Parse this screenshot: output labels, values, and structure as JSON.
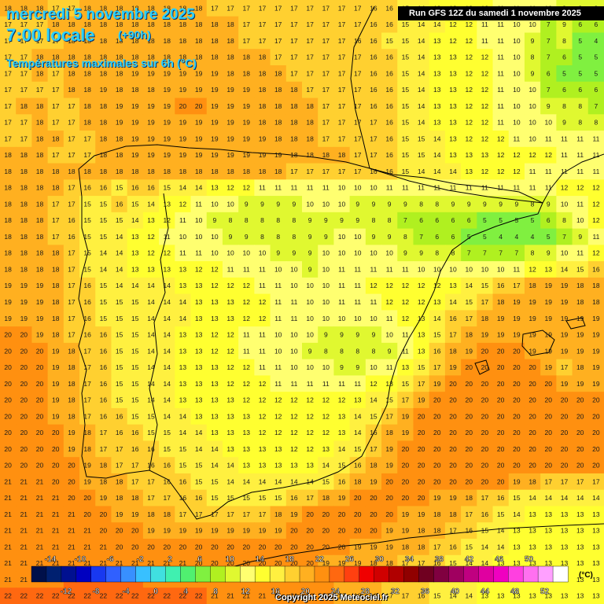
{
  "header": {
    "date_line": "mercredi 5 novembre 2025",
    "time_line": "7:00 locale",
    "lead_time": "(+90h)",
    "variable": "Températures maximales sur 6h (°C)",
    "run": "Run GFS 12Z du samedi 1 novembre 2025"
  },
  "legend": {
    "unit": "(°C)",
    "top_labels": [
      "-14",
      "-10",
      "-6",
      "-2",
      "2",
      "6",
      "10",
      "14",
      "18",
      "22",
      "26",
      "30",
      "34",
      "38",
      "42",
      "46",
      "50"
    ],
    "bottom_labels": [
      "-12",
      "-8",
      "-4",
      "0",
      "4",
      "8",
      "12",
      "16",
      "20",
      "24",
      "28",
      "32",
      "36",
      "40",
      "44",
      "48",
      "52"
    ],
    "colors": [
      "#00104a",
      "#002070",
      "#001090",
      "#0000c0",
      "#1838f0",
      "#3060ff",
      "#3890ff",
      "#38c0ff",
      "#40e0e0",
      "#40f0b0",
      "#50f070",
      "#80f040",
      "#b0f020",
      "#e0f830",
      "#ffff70",
      "#ffff30",
      "#fff040",
      "#ffd030",
      "#ffb020",
      "#ff9010",
      "#ff6810",
      "#ff4010",
      "#f00000",
      "#d00000",
      "#b00000",
      "#900000",
      "#700020",
      "#800040",
      "#a00060",
      "#c00080",
      "#e000a0",
      "#f000c0",
      "#ff40e0",
      "#ff70f0",
      "#ffa0ff",
      "#ffffff"
    ]
  },
  "footer": {
    "copyright": "Copyright 2025 Meteociel.fr"
  },
  "map_data": {
    "grid_cols": 38,
    "grid_rows": 37,
    "values": {
      "rows": [
        "18 18 18 17 17 18 18 18 18 18 18 18 18 17 17 17 17 17 17 17 17 17 17 16 16 15 14 13 13 12 12 11 11 11 10 9 9 8",
        "17 17 17 18 18 18 18 18 18 18 18 18 18 18 18 17 17 17 17 17 17 17 17 16 16 15 14 14 12 12 11 11 10 10 7 9 6 6",
        "17 17 17 17 18 18 18 18 18 18 18 18 18 18 18 17 17 17 17 17 17 17 16 16 15 15 14 13 12 12 11 11 10 9 7 8 5 4",
        "17 17 18 18 18 18 18 18 18 18 18 18 18 18 18 18 18 17 17 17 17 17 17 16 16 15 14 13 13 12 12 11 10 8 7 6 5 5",
        "17 17 18 17 18 18 18 18 19 19 19 19 19 19 18 18 18 18 17 17 17 17 17 16 16 15 14 13 13 12 12 11 10 9 6 5 5 5",
        "17 17 17 17 18 18 19 18 18 18 19 19 19 19 19 19 18 18 18 17 17 17 17 16 16 15 14 13 13 12 12 11 10 10 7 6 6 6",
        "17 18 18 17 17 18 18 19 19 19 19 20 20 19 19 19 18 18 18 18 17 17 17 16 16 15 14 13 13 12 12 11 10 10 9 8 8 7",
        "17 17 18 17 17 18 18 19 19 19 19 19 19 19 19 19 18 18 18 18 17 17 17 17 16 15 14 13 13 12 12 11 10 10 10 9 8 8",
        "17 17 18 18 17 17 18 18 19 19 19 19 19 19 19 19 19 18 18 18 17 17 17 17 16 15 15 14 13 12 12 12 11 10 11 11 11 11",
        "18 18 18 17 17 17 18 18 19 19 19 19 19 19 19 19 19 19 18 18 18 18 17 17 16 15 15 14 13 13 13 12 12 12 12 11 11 11",
        "18 18 18 18 18 18 18 18 18 18 18 18 18 18 18 18 18 18 17 17 17 17 17 16 16 15 14 14 14 13 12 12 12 11 11 11 11 11",
        "18 18 18 18 17 16 16 15 16 16 15 14 14 13 12 12 11 11 11 11 11 10 10 10 11 11 11 11 11 11 11 11 11 11 11 12 12 12",
        "18 18 18 17 17 15 15 16 15 14 13 12 11 10 10 9 9 9 9 10 10 10 9 9 9 9 8 8 9 9 9 9 9 8 9 10 11 12",
        "18 18 18 17 16 15 15 15 14 13 12 11 10 9 8 8 8 8 8 9 9 9 9 8 8 7 6 6 6 6 5 5 5 5 6 8 10 12",
        "18 18 18 17 16 15 15 14 13 12 11 10 10 10 9 9 8 8 8 9 9 10 10 9 9 8 7 6 6 5 5 4 4 4 5 7 9 11",
        "18 18 18 18 17 15 14 14 13 12 12 11 11 10 10 10 10 9 9 9 10 10 10 10 10 9 9 8 8 7 7 7 7 8 9 10 11 12",
        "18 18 18 18 17 15 14 14 13 13 13 13 12 12 11 11 11 10 10 9 10 11 11 11 11 11 10 10 10 10 10 10 11 12 13 14 15 16",
        "19 19 19 18 17 16 15 14 14 14 14 13 13 12 12 12 11 11 10 10 10 11 11 12 12 12 12 12 13 14 15 16 17 18 19 19 18 18",
        "19 19 19 18 17 16 15 15 15 14 14 14 13 13 13 12 12 11 11 10 10 11 11 11 12 12 12 13 14 15 17 18 19 19 19 19 18 18",
        "19 19 19 18 17 16 15 15 15 14 14 14 13 13 13 12 12 11 11 10 10 10 10 10 11 12 13 14 16 17 18 19 19 19 19 19 19 19",
        "20 20 19 18 17 16 16 15 15 14 14 13 13 12 12 11 11 10 10 10 9 9 9 9 10 11 13 15 17 18 19 19 19 19 19 19 19 19",
        "20 20 20 19 18 17 16 15 15 14 14 13 13 12 12 11 11 10 10 9 8 8 8 8 9 11 13 16 18 19 20 20 20 19 19 19 19 19",
        "20 20 20 19 18 17 16 15 15 14 14 13 13 13 12 12 11 11 10 10 10 9 9 10 11 13 15 17 19 20 20 20 20 20 19 17 18 19",
        "20 20 20 19 18 17 16 15 15 14 14 13 13 13 12 12 12 11 11 11 11 11 11 12 13 15 17 19 20 20 20 20 20 20 20 19 19 19",
        "20 20 20 19 18 17 16 15 15 14 14 13 13 13 13 12 12 12 12 12 12 12 13 14 15 17 19 20 20 20 20 20 20 20 20 20 20 20",
        "20 20 20 19 18 17 16 16 15 15 14 14 13 13 13 13 12 12 12 12 12 13 14 15 17 19 20 20 20 20 20 20 20 20 20 20 20 20",
        "20 20 20 20 19 18 17 16 16 15 15 14 14 13 13 13 12 12 12 12 12 13 14 16 18 19 20 20 20 20 20 20 20 20 20 20 20 20",
        "20 20 20 20 19 18 17 17 16 16 15 15 14 14 13 13 13 13 12 12 13 14 15 17 19 20 20 20 20 20 20 20 20 20 20 20 20 20",
        "20 20 20 20 20 19 18 17 17 16 16 15 15 14 14 13 13 13 13 13 14 15 16 18 19 20 20 20 20 20 20 20 20 20 20 20 20 20",
        "21 21 21 20 20 19 18 18 17 17 16 16 15 15 14 14 14 14 14 14 15 16 18 19 20 20 20 20 20 20 20 20 19 18 17 17 17 17",
        "21 21 21 21 20 20 19 18 18 17 17 16 16 15 15 15 15 15 16 17 18 19 20 20 20 20 20 19 19 18 17 16 15 14 14 14 14 14",
        "21 21 21 21 21 20 20 19 19 18 18 17 17 17 17 17 17 18 19 20 20 20 20 20 20 19 19 18 18 17 16 15 14 13 13 13 13 13",
        "21 21 21 21 21 21 20 20 20 19 19 19 19 19 19 19 19 19 20 20 20 20 20 20 19 19 18 18 17 16 15 14 13 13 13 13 13 13",
        "21 21 21 21 21 21 21 20 20 20 20 20 20 20 20 20 20 20 20 20 20 20 19 19 19 18 18 17 16 15 14 14 13 13 13 13 13 13",
        "21 21 21 21 21 21 21 21 21 21 21 21 20 20 20 20 20 20 20 20 19 19 19 18 18 17 17 16 15 14 14 13 13 13 13 13 13 13",
        "21 21 21 21 22 22 22 22 22 21 21 21 21 21 21 21 21 21 21 21 20 19 18 18 17 17 16 15 14 14 13 13 13 13 13 13 13 13",
        "22 22 22 22 22 22 22 22 22 22 22 22 22 21 21 21 21 21 21 20 20 19 18 18 17 17 16 15 14 14 13 13 13 13 13 13 13 13"
      ]
    }
  }
}
